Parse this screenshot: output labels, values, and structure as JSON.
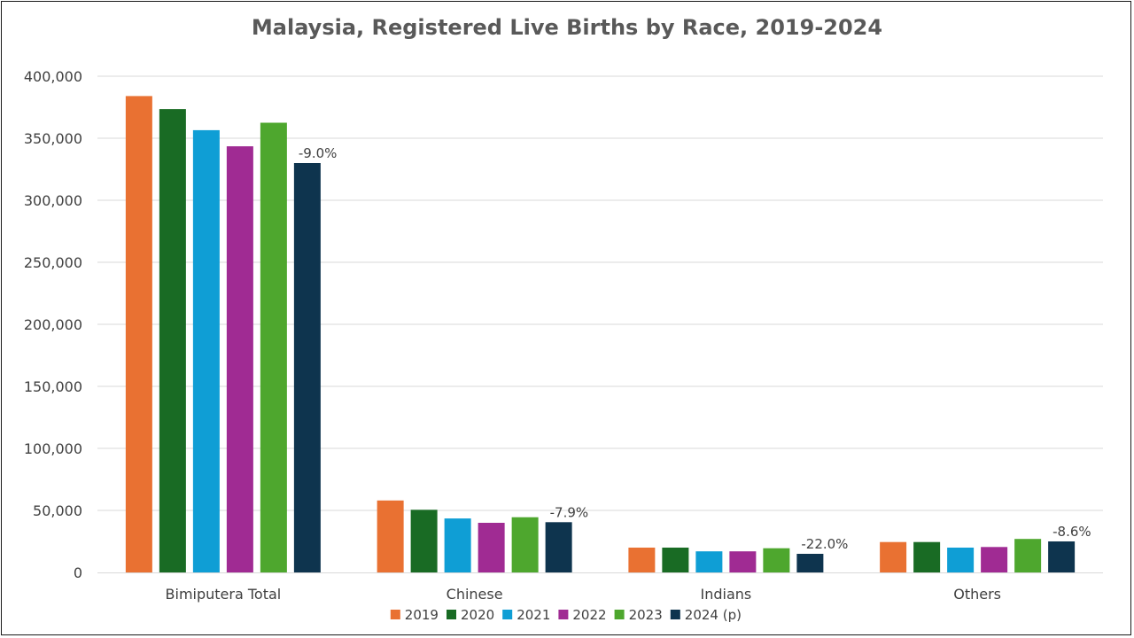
{
  "chart_data": {
    "type": "bar",
    "title": "Malaysia, Registered Live Births by Race, 2019-2024",
    "xlabel": "",
    "ylabel": "",
    "categories": [
      "Bimiputera Total",
      "Chinese",
      "Indians",
      "Others"
    ],
    "series": [
      {
        "name": "2019",
        "color": "#E97132",
        "values": [
          384000,
          58000,
          20000,
          24500
        ]
      },
      {
        "name": "2020",
        "color": "#196B24",
        "values": [
          373500,
          50500,
          20000,
          24500
        ]
      },
      {
        "name": "2021",
        "color": "#0F9ED5",
        "values": [
          356500,
          43500,
          17000,
          20000
        ]
      },
      {
        "name": "2022",
        "color": "#A02B93",
        "values": [
          343500,
          40000,
          17000,
          20500
        ]
      },
      {
        "name": "2023",
        "color": "#4EA72E",
        "values": [
          362500,
          44500,
          19500,
          27000
        ]
      },
      {
        "name": "2024 (p)",
        "color": "#0E344E",
        "values": [
          330000,
          40500,
          15000,
          25000
        ]
      }
    ],
    "data_labels": {
      "series": "2024 (p)",
      "values": [
        "-9.0%",
        "-7.9%",
        "-22.0%",
        "-8.6%"
      ]
    },
    "ylim": [
      0,
      400000
    ],
    "yticks": [
      {
        "value": 0,
        "label": "0"
      },
      {
        "value": 50000,
        "label": "50,000"
      },
      {
        "value": 100000,
        "label": "100,000"
      },
      {
        "value": 150000,
        "label": "150,000"
      },
      {
        "value": 200000,
        "label": "200,000"
      },
      {
        "value": 250000,
        "label": "250,000"
      },
      {
        "value": 300000,
        "label": "300,000"
      },
      {
        "value": 350000,
        "label": "350,000"
      },
      {
        "value": 400000,
        "label": "400,000"
      }
    ],
    "grid": true,
    "gridline_color": "#D9D9D9",
    "legend_position": "bottom"
  }
}
